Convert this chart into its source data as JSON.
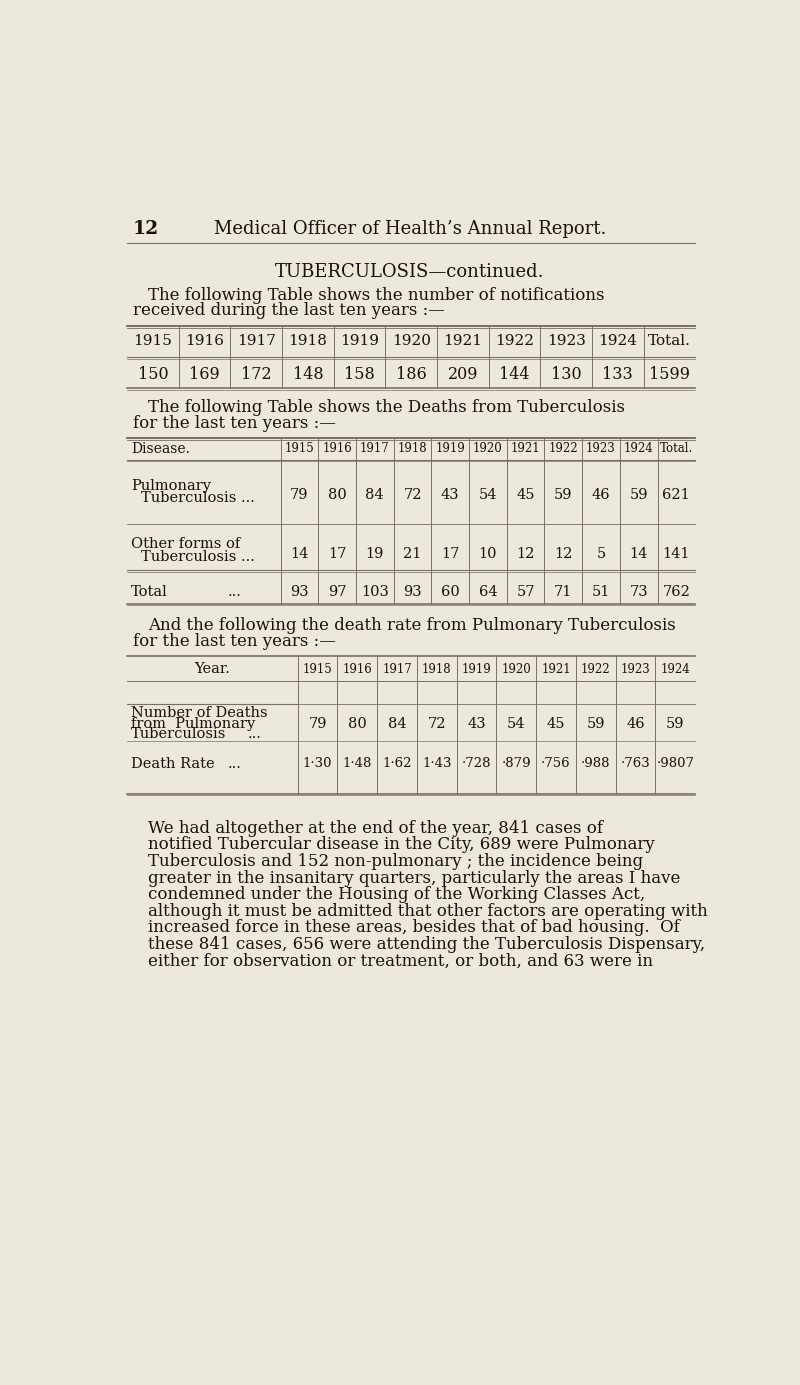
{
  "bg_color": "#ede8dc",
  "text_color": "#1a1008",
  "line_color": "#7a7060",
  "page_number": "12",
  "header_title": "Medical Officer of Health’s Annual Report.",
  "section_title": "TUBERCULOSIS—continued.",
  "para1_line1": "The following Table shows the number of notifications",
  "para1_line2": "received during the last ten years :—",
  "table1_years": [
    "1915",
    "1916",
    "1917",
    "1918",
    "1919",
    "1920",
    "1921",
    "1922",
    "1923",
    "1924",
    "Total."
  ],
  "table1_values": [
    "150",
    "169",
    "172",
    "148",
    "158",
    "186",
    "209",
    "144",
    "130",
    "133",
    "1599"
  ],
  "para2_line1": "The following Table shows the Deaths from Tuberculosis",
  "para2_line2": "for the last ten years :—",
  "table2_header_years": [
    "1915",
    "1916",
    "1917",
    "1918",
    "1919",
    "1920",
    "1921",
    "1922",
    "1923",
    "1924",
    "Total."
  ],
  "table2_row1_label1": "Pulmonary",
  "table2_row1_label2": "Tuberculosis ...",
  "table2_row1_values": [
    "79",
    "80",
    "84",
    "72",
    "43",
    "54",
    "45",
    "59",
    "46",
    "59",
    "621"
  ],
  "table2_row2_label1": "Other forms of",
  "table2_row2_label2": "Tuberculosis ...",
  "table2_row2_values": [
    "14",
    "17",
    "19",
    "21",
    "17",
    "10",
    "12",
    "12",
    "5",
    "14",
    "141"
  ],
  "table2_total_label": "Total",
  "table2_total_dots": "...",
  "table2_total_values": [
    "93",
    "97",
    "103",
    "93",
    "60",
    "64",
    "57",
    "71",
    "51",
    "73",
    "762"
  ],
  "para3_line1": "And the following the death rate from Pulmonary Tuberculosis",
  "para3_line2": "for the last ten years :—",
  "table3_year_label": "Year.",
  "table3_years": [
    "1915",
    "1916",
    "1917",
    "1918",
    "1919",
    "1920",
    "1921",
    "1922",
    "1923",
    "1924"
  ],
  "table3_row1_label1": "Number of Deaths",
  "table3_row1_label2": "from  Pulmonary",
  "table3_row1_label3": "Tuberculosis",
  "table3_row1_dots": "...",
  "table3_row1_values": [
    "79",
    "80",
    "84",
    "72",
    "43",
    "54",
    "45",
    "59",
    "46",
    "59"
  ],
  "table3_row2_label": "Death Rate",
  "table3_row2_dots": "...",
  "table3_row2_values": [
    "1·30",
    "1·48",
    "1·62",
    "1·43",
    "·728",
    "·879",
    "·756",
    "·988",
    "·763",
    "·9807"
  ],
  "para4_lines": [
    "We had altogether at the end of the year, 841 cases of",
    "notified Tubercular disease in the City, 689 were Pulmonary",
    "Tuberculosis and 152 non-pulmonary ; the incidence being",
    "greater in the insanitary quarters, particularly the areas I have",
    "condemned under the Housing of the Working Classes Act,",
    "although it must be admitted that other factors are operating with",
    "increased force in these areas, besides that of bad housing.  Of",
    "these 841 cases, 656 were attending the Tuberculosis Dispensary,",
    "either for observation or treatment, or both, and 63 were in"
  ]
}
